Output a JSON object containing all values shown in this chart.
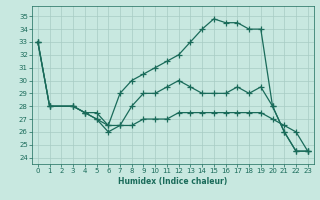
{
  "xlabel": "Humidex (Indice chaleur)",
  "bg_color": "#c8e8e0",
  "grid_color": "#a8ccc4",
  "line_color": "#1a6b5a",
  "xlim": [
    -0.5,
    23.5
  ],
  "ylim": [
    23.5,
    35.8
  ],
  "yticks": [
    24,
    25,
    26,
    27,
    28,
    29,
    30,
    31,
    32,
    33,
    34,
    35
  ],
  "xticks": [
    0,
    1,
    2,
    3,
    4,
    5,
    6,
    7,
    8,
    9,
    10,
    11,
    12,
    13,
    14,
    15,
    16,
    17,
    18,
    19,
    20,
    21,
    22,
    23
  ],
  "line1_x": [
    0,
    1,
    3,
    4,
    5,
    6,
    7,
    8,
    9,
    10,
    11,
    12,
    13,
    14,
    15,
    16,
    17,
    18,
    19,
    20,
    21,
    22,
    23
  ],
  "line1_y": [
    33,
    28,
    28,
    27.5,
    27.5,
    26.5,
    29,
    30,
    30.5,
    31,
    31.5,
    32,
    33,
    34,
    34.8,
    34.5,
    34.5,
    34,
    34,
    28,
    26,
    24.5,
    24.5
  ],
  "line2_x": [
    0,
    1,
    3,
    4,
    5,
    6,
    7,
    8,
    9,
    10,
    11,
    12,
    13,
    14,
    15,
    16,
    17,
    18,
    19,
    20,
    21,
    22,
    23
  ],
  "line2_y": [
    33,
    28,
    28,
    27.5,
    27,
    26,
    26.5,
    28,
    29,
    29,
    29.5,
    30,
    29.5,
    29,
    29,
    29,
    29.5,
    29,
    29.5,
    28,
    26,
    24.5,
    24.5
  ],
  "line3_x": [
    0,
    1,
    3,
    4,
    5,
    6,
    7,
    8,
    9,
    10,
    11,
    12,
    13,
    14,
    15,
    16,
    17,
    18,
    19,
    20,
    21,
    22,
    23
  ],
  "line3_y": [
    33,
    28,
    28,
    27.5,
    27,
    26.5,
    26.5,
    26.5,
    27,
    27,
    27,
    27.5,
    27.5,
    27.5,
    27.5,
    27.5,
    27.5,
    27.5,
    27.5,
    27,
    26.5,
    26,
    24.5
  ]
}
